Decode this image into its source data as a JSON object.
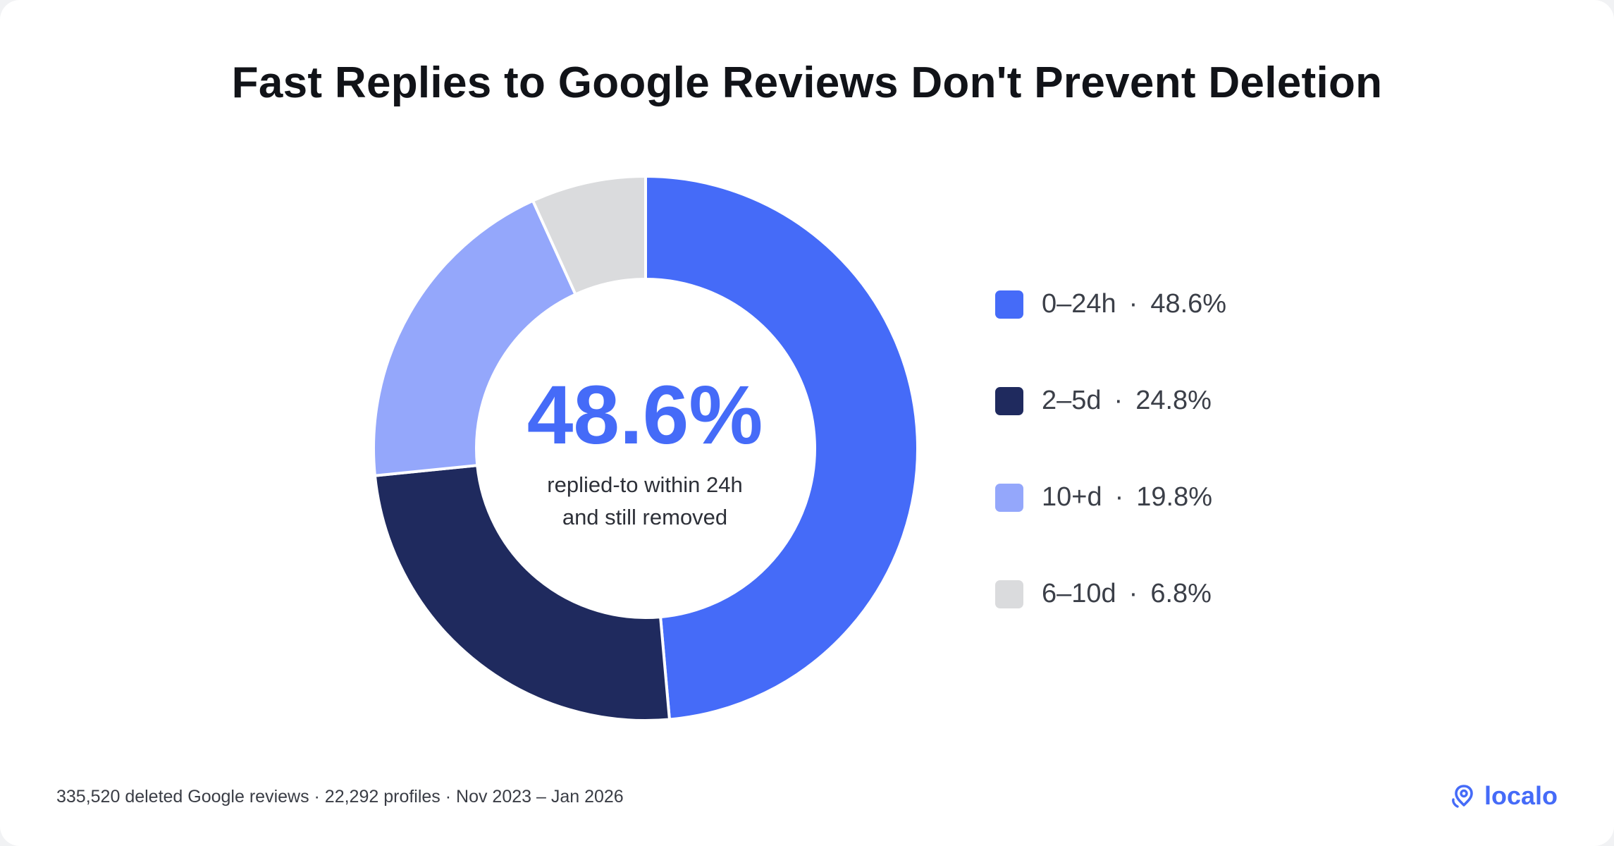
{
  "chart_data": {
    "type": "pie",
    "title": "Fast Replies to Google Reviews Don't Prevent Deletion",
    "slices": [
      {
        "label": "0–24h",
        "value": 48.6,
        "value_label": "48.6%",
        "color": "#456bf8"
      },
      {
        "label": "2–5d",
        "value": 24.8,
        "value_label": "24.8%",
        "color": "#1f2a5e"
      },
      {
        "label": "10+d",
        "value": 19.8,
        "value_label": "19.8%",
        "color": "#94a7fb"
      },
      {
        "label": "6–10d",
        "value": 6.8,
        "value_label": "6.8%",
        "color": "#dadbdd"
      }
    ],
    "center": {
      "value": "48.6%",
      "caption_line1": "replied-to within 24h",
      "caption_line2": "and still removed"
    },
    "legend_position": "right",
    "legend_separator": "·"
  },
  "footer": {
    "source": "335,520 deleted Google reviews · 22,292 profiles · Nov 2023 – Jan 2026"
  },
  "brand": {
    "name": "localo",
    "icon": "location-pin-icon",
    "color": "#456bf8"
  }
}
